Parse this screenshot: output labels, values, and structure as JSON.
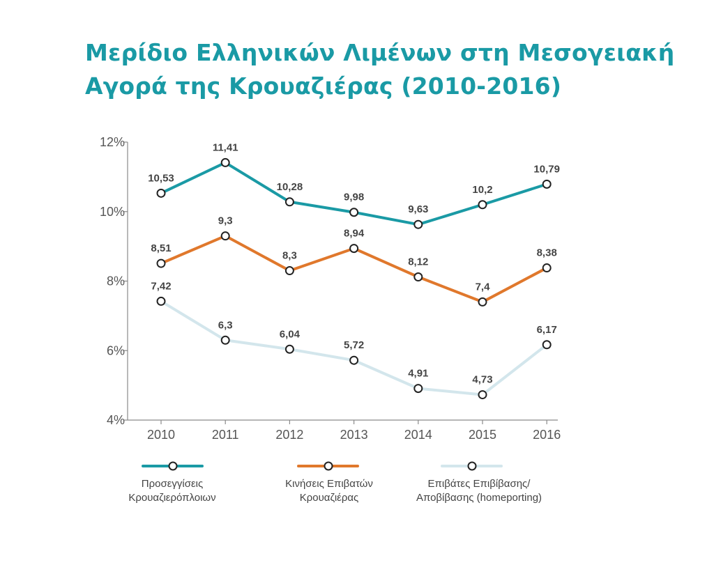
{
  "title": {
    "line1": "Μερίδιο Ελληνικών Λιμένων στη Μεσογειακή",
    "line2": "Αγορά της Κρουαζιέρας (2010-2016)"
  },
  "legend": [
    {
      "line1": "Προσεγγίσεις",
      "line2": "Κρουαζιερόπλοιων"
    },
    {
      "line1": "Κινήσεις Επιβατών",
      "line2": "Κρουαζιέρας"
    },
    {
      "line1": "Επιβάτες Επιβίβασης/",
      "line2": "Αποβίβασης (homeporting)"
    }
  ],
  "chart_data": {
    "type": "line",
    "title": "Μερίδιο Ελληνικών Λιμένων στη Μεσογειακή Αγορά της Κρουαζιέρας (2010-2016)",
    "categories": [
      "2010",
      "2011",
      "2012",
      "2013",
      "2014",
      "2015",
      "2016"
    ],
    "ylim": [
      4,
      12
    ],
    "yticks": [
      12,
      10,
      8,
      6,
      4
    ],
    "ytick_labels": [
      "12%",
      "10%",
      "8%",
      "6%",
      "4%"
    ],
    "legend_position": "bottom",
    "series": [
      {
        "name": "Προσεγγίσεις Κρουαζιερόπλοιων",
        "color": "#1a9aa5",
        "values": [
          10.53,
          11.41,
          10.28,
          9.98,
          9.63,
          10.2,
          10.79
        ],
        "labels": [
          "10,53",
          "11,41",
          "10,28",
          "9,98",
          "9,63",
          "10,2",
          "10,79"
        ]
      },
      {
        "name": "Κινήσεις Επιβατών Κρουαζιέρας",
        "color": "#e0782c",
        "values": [
          8.51,
          9.3,
          8.3,
          8.94,
          8.12,
          7.4,
          8.38
        ],
        "labels": [
          "8,51",
          "9,3",
          "8,3",
          "8,94",
          "8,12",
          "7,4",
          "8,38"
        ]
      },
      {
        "name": "Επιβάτες Επιβίβασης/ Αποβίβασης (homeporting)",
        "color": "#d3e6ec",
        "values": [
          7.42,
          6.3,
          6.04,
          5.72,
          4.91,
          4.73,
          6.17
        ],
        "labels": [
          "7,42",
          "6,3",
          "6,04",
          "5,72",
          "4,91",
          "4,73",
          "6,17"
        ]
      }
    ]
  }
}
